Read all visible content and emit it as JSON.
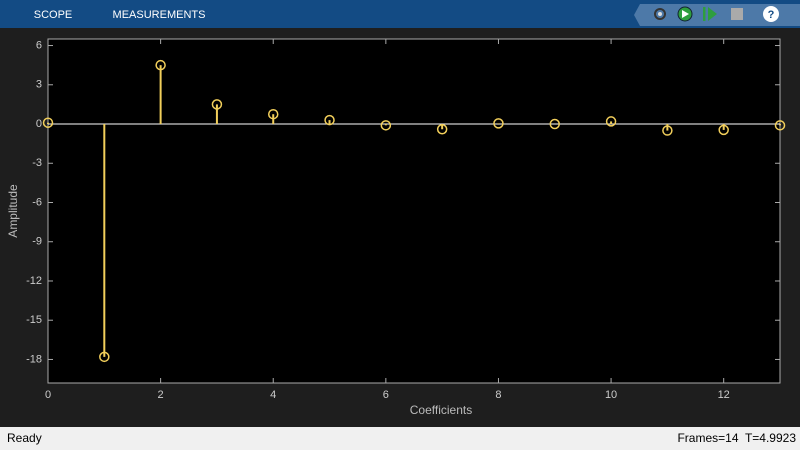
{
  "toolbar": {
    "tabs": [
      "SCOPE",
      "MEASUREMENTS"
    ],
    "help": "?"
  },
  "chart_data": {
    "type": "stem",
    "x": [
      0,
      1,
      2,
      3,
      4,
      5,
      6,
      7,
      8,
      9,
      10,
      11,
      12,
      13
    ],
    "values": [
      0.1,
      -17.8,
      4.5,
      1.5,
      0.75,
      0.3,
      -0.1,
      -0.4,
      0.05,
      0,
      0.2,
      -0.5,
      -0.45,
      -0.1
    ],
    "color": "#f2cf5b",
    "xlim": [
      0,
      13
    ],
    "xticks": [
      0,
      2,
      4,
      6,
      8,
      10,
      12
    ],
    "ylim": [
      -19.8,
      6.5
    ],
    "yticks": [
      6,
      3,
      0,
      -3,
      -6,
      -9,
      -12,
      -15,
      -18
    ],
    "x_label": "Coefficients",
    "y_label": "Amplitude",
    "grid": false
  },
  "status_bar": {
    "left": "Ready",
    "right": "Frames=14  T=4.9923"
  }
}
